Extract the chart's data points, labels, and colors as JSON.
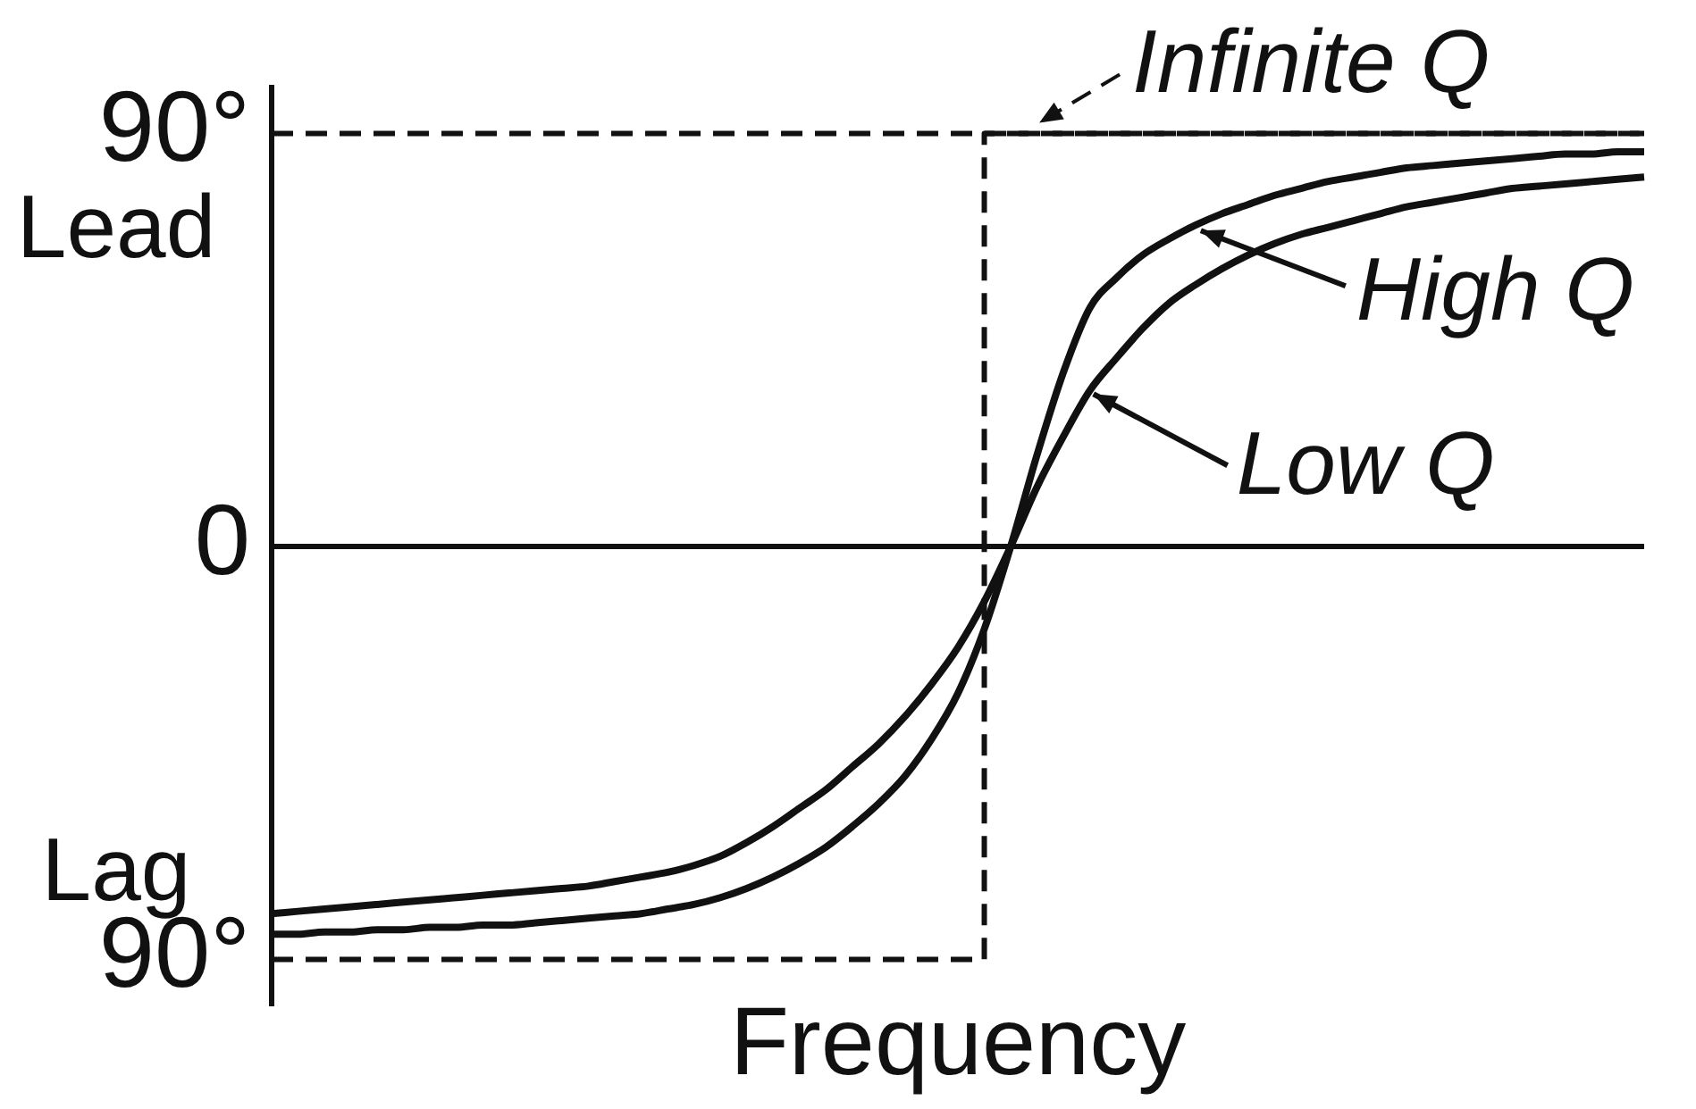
{
  "chart_data": {
    "type": "line",
    "categories": [
      null,
      null,
      null,
      null,
      null,
      null,
      null,
      null,
      null,
      null,
      null,
      null,
      null,
      null,
      null,
      null,
      null,
      null,
      null,
      null,
      null,
      null,
      null,
      null,
      null,
      null,
      null,
      null,
      null,
      null,
      null,
      null,
      null,
      null,
      null,
      null,
      null,
      null,
      null,
      null,
      null,
      null,
      null,
      null,
      null,
      null,
      null,
      null,
      null,
      null,
      null,
      null,
      null
    ],
    "series": [
      {
        "name": "Infinite Q",
        "type": "step",
        "line_style": "dashed",
        "color": "#111111",
        "values": [
          -90,
          -90,
          -90,
          -90,
          -90,
          -90,
          -90,
          -90,
          -90,
          -90,
          -90,
          -90,
          -90,
          -90,
          -90,
          -90,
          -90,
          -90,
          -90,
          -90,
          -90,
          -90,
          -90,
          -90,
          -90,
          -90,
          -90,
          -90,
          90,
          90,
          90,
          90,
          90,
          90,
          90,
          90,
          90,
          90,
          90,
          90,
          90,
          90,
          90,
          90,
          90,
          90,
          90,
          90,
          90,
          90,
          90,
          90,
          90
        ]
      },
      {
        "name": "High Q",
        "color": "#111111",
        "values": [
          -84.5,
          -84.5,
          -84,
          -84,
          -83.5,
          -83.5,
          -83,
          -83,
          -82.5,
          -82.5,
          -82,
          -81.5,
          -81,
          -80.5,
          -80,
          -79,
          -78,
          -76.5,
          -74.5,
          -72,
          -69,
          -65.5,
          -61,
          -56,
          -50,
          -42,
          -32,
          -18,
          0,
          20,
          38,
          52,
          58.5,
          63.5,
          67,
          70,
          72.5,
          74.5,
          76.5,
          78,
          79.5,
          80.5,
          81.5,
          82.5,
          83,
          83.5,
          84,
          84.5,
          85,
          85.5,
          85.5,
          86,
          86
        ]
      },
      {
        "name": "Low Q",
        "color": "#111111",
        "values": [
          -80,
          -79.5,
          -79,
          -78.5,
          -78,
          -77.5,
          -77,
          -76.5,
          -76,
          -75.5,
          -75,
          -74.5,
          -74,
          -73,
          -72,
          -71,
          -69.5,
          -67.5,
          -64.5,
          -61,
          -57,
          -53,
          -48,
          -43,
          -37,
          -30,
          -22,
          -12,
          0,
          13,
          24,
          34,
          41,
          47.5,
          53,
          57,
          60.5,
          63.5,
          66,
          68,
          69.5,
          71,
          72.5,
          74,
          75,
          76,
          77,
          78,
          78.5,
          79,
          79.5,
          80,
          80.5
        ]
      }
    ],
    "ylim": [
      -100,
      100
    ],
    "yticks": [
      {
        "value": -90,
        "label": "90°"
      },
      0,
      {
        "value": 90,
        "label": "90°"
      }
    ],
    "ref_lines": [
      {
        "axis": "y",
        "value": 90,
        "line_style": "dashed",
        "color": "#111111"
      },
      {
        "axis": "y",
        "value": 0,
        "line_style": "solid",
        "color": "#111111"
      }
    ],
    "annotations": [
      "Lead",
      "Lag"
    ],
    "xlabel": "Frequency",
    "tick_labels": "y",
    "grid": false,
    "legend": "top right"
  }
}
